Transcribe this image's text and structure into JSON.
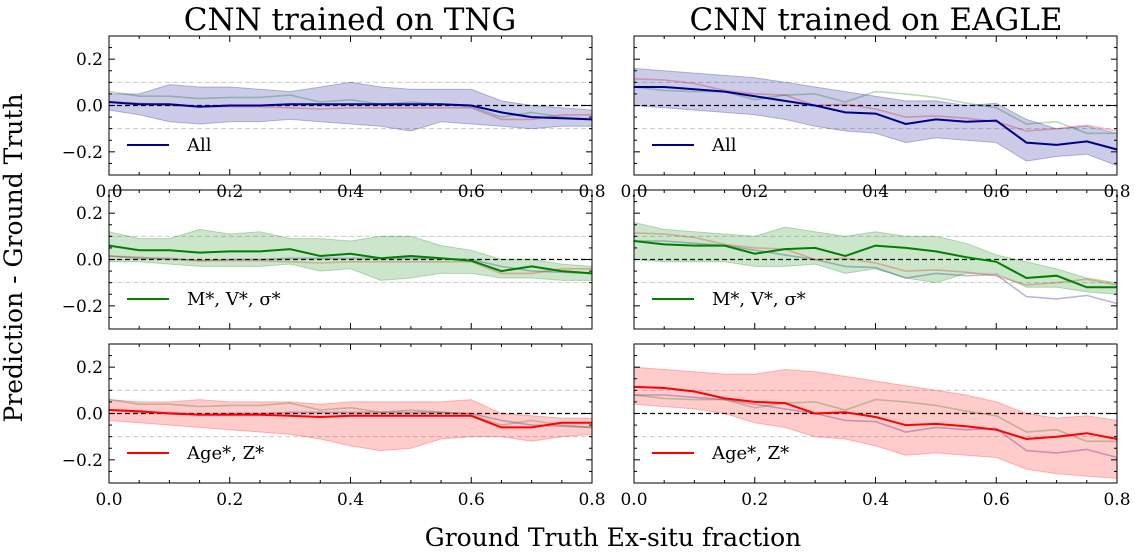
{
  "figure": {
    "suptitle_y": "Prediction - Ground Truth",
    "suptitle_x": "Ground Truth Ex-situ fraction"
  },
  "colors": {
    "All": "#00008b",
    "Dyn": "#008000",
    "Pop": "#ff0000",
    "zero": "#000000",
    "ref": "#cccccc"
  },
  "chart_data": [
    {
      "type": "line",
      "title": "CNN trained on TNG",
      "subplot": "TNG-All",
      "xlabel": "Ground Truth Ex-situ fraction",
      "ylabel": "Prediction - Ground Truth",
      "xlim": [
        0,
        0.8
      ],
      "ylim": [
        -0.3,
        0.3
      ],
      "x_ticks": [
        0.0,
        0.2,
        0.4,
        0.6,
        0.8
      ],
      "y_ticks": [
        -0.2,
        0.0,
        0.2
      ],
      "x_tick_labels": [
        "0.0",
        "0.2",
        "0.4",
        "0.6",
        "0.8"
      ],
      "y_tick_labels": [
        "−0.2",
        "0.0",
        "0.2"
      ],
      "reference_lines": [
        0,
        0.1,
        -0.1
      ],
      "x": [
        0.0,
        0.05,
        0.1,
        0.15,
        0.2,
        0.25,
        0.3,
        0.35,
        0.4,
        0.45,
        0.5,
        0.55,
        0.6,
        0.65,
        0.7,
        0.75,
        0.8
      ],
      "highlight": "All",
      "legend": "All",
      "series": [
        {
          "name": "All",
          "values": [
            0.015,
            0.005,
            0.005,
            -0.005,
            0.0,
            0.0,
            0.005,
            0.005,
            0.005,
            0.005,
            0.005,
            0.005,
            0.0,
            -0.03,
            -0.05,
            -0.055,
            -0.06
          ],
          "upper": [
            0.05,
            0.05,
            0.09,
            0.08,
            0.08,
            0.07,
            0.06,
            0.08,
            0.1,
            0.08,
            0.07,
            0.07,
            0.07,
            0.02,
            0.0,
            -0.01,
            -0.02
          ],
          "lower": [
            -0.02,
            -0.04,
            -0.07,
            -0.08,
            -0.07,
            -0.07,
            -0.06,
            -0.07,
            -0.08,
            -0.09,
            -0.11,
            -0.07,
            -0.08,
            -0.09,
            -0.1,
            -0.09,
            -0.09
          ]
        },
        {
          "name": "Dyn",
          "values": [
            0.06,
            0.04,
            0.04,
            0.03,
            0.035,
            0.035,
            0.045,
            0.015,
            0.025,
            0.005,
            0.015,
            0.005,
            -0.005,
            -0.05,
            -0.03,
            -0.05,
            -0.06
          ]
        },
        {
          "name": "Pop",
          "values": [
            0.015,
            0.01,
            0.0,
            -0.005,
            -0.005,
            -0.005,
            -0.01,
            -0.015,
            -0.01,
            -0.01,
            -0.01,
            -0.01,
            -0.01,
            -0.06,
            -0.06,
            -0.04,
            -0.04
          ]
        }
      ]
    },
    {
      "type": "line",
      "title": "CNN trained on EAGLE",
      "subplot": "EAGLE-All",
      "xlim": [
        0,
        0.8
      ],
      "ylim": [
        -0.3,
        0.3
      ],
      "x_ticks": [
        0.0,
        0.2,
        0.4,
        0.6,
        0.8
      ],
      "y_ticks": [
        -0.2,
        0.0,
        0.2
      ],
      "x_tick_labels": [
        "0.0",
        "0.2",
        "0.4",
        "0.6",
        "0.8"
      ],
      "reference_lines": [
        0,
        0.1,
        -0.1
      ],
      "x": [
        0.0,
        0.05,
        0.1,
        0.15,
        0.2,
        0.25,
        0.3,
        0.35,
        0.4,
        0.45,
        0.5,
        0.55,
        0.6,
        0.65,
        0.7,
        0.75,
        0.8
      ],
      "highlight": "All",
      "legend": "All",
      "series": [
        {
          "name": "All",
          "values": [
            0.08,
            0.08,
            0.07,
            0.06,
            0.04,
            0.02,
            0.0,
            -0.03,
            -0.035,
            -0.08,
            -0.06,
            -0.07,
            -0.065,
            -0.16,
            -0.17,
            -0.155,
            -0.19
          ],
          "upper": [
            0.16,
            0.15,
            0.14,
            0.13,
            0.12,
            0.1,
            0.08,
            0.06,
            0.04,
            0.02,
            0.02,
            0.0,
            0.01,
            -0.06,
            -0.1,
            -0.09,
            -0.12
          ],
          "lower": [
            0.0,
            -0.01,
            -0.02,
            -0.03,
            -0.04,
            -0.06,
            -0.09,
            -0.11,
            -0.12,
            -0.16,
            -0.14,
            -0.15,
            -0.16,
            -0.24,
            -0.22,
            -0.21,
            -0.26
          ]
        },
        {
          "name": "Dyn",
          "values": [
            0.08,
            0.065,
            0.06,
            0.06,
            0.025,
            0.045,
            0.05,
            0.015,
            0.06,
            0.05,
            0.035,
            0.01,
            -0.01,
            -0.08,
            -0.07,
            -0.12,
            -0.12
          ]
        },
        {
          "name": "Pop",
          "values": [
            0.115,
            0.11,
            0.095,
            0.065,
            0.05,
            0.045,
            0.0,
            0.005,
            -0.015,
            -0.05,
            -0.045,
            -0.055,
            -0.07,
            -0.11,
            -0.1,
            -0.085,
            -0.11
          ]
        }
      ]
    },
    {
      "type": "line",
      "subplot": "TNG-Dyn",
      "xlim": [
        0,
        0.8
      ],
      "ylim": [
        -0.3,
        0.3
      ],
      "x_ticks": [
        0.0,
        0.2,
        0.4,
        0.6,
        0.8
      ],
      "y_ticks": [
        -0.2,
        0.0,
        0.2
      ],
      "y_tick_labels": [
        "−0.2",
        "0.0",
        "0.2"
      ],
      "reference_lines": [
        0,
        0.1,
        -0.1
      ],
      "x": [
        0.0,
        0.05,
        0.1,
        0.15,
        0.2,
        0.25,
        0.3,
        0.35,
        0.4,
        0.45,
        0.5,
        0.55,
        0.6,
        0.65,
        0.7,
        0.75,
        0.8
      ],
      "highlight": "Dyn",
      "legend": "M*, V*, σ*",
      "series": [
        {
          "name": "All",
          "values": [
            0.015,
            0.005,
            0.005,
            -0.005,
            0.0,
            0.0,
            0.005,
            0.005,
            0.005,
            0.005,
            0.005,
            0.005,
            0.0,
            -0.03,
            -0.05,
            -0.055,
            -0.06
          ]
        },
        {
          "name": "Dyn",
          "values": [
            0.06,
            0.04,
            0.04,
            0.03,
            0.035,
            0.035,
            0.045,
            0.015,
            0.025,
            0.005,
            0.015,
            0.005,
            -0.005,
            -0.05,
            -0.03,
            -0.05,
            -0.06
          ],
          "upper": [
            0.12,
            0.09,
            0.09,
            0.13,
            0.11,
            0.12,
            0.09,
            0.09,
            0.08,
            0.1,
            0.1,
            0.06,
            0.04,
            0.0,
            0.0,
            -0.02,
            -0.03
          ],
          "lower": [
            -0.01,
            -0.01,
            -0.02,
            -0.03,
            -0.03,
            -0.03,
            -0.02,
            -0.05,
            -0.04,
            -0.09,
            -0.08,
            -0.06,
            -0.06,
            -0.08,
            -0.08,
            -0.09,
            -0.09
          ]
        },
        {
          "name": "Pop",
          "values": [
            0.015,
            0.01,
            0.0,
            -0.005,
            -0.005,
            -0.005,
            -0.01,
            -0.015,
            -0.01,
            -0.01,
            -0.01,
            -0.01,
            -0.01,
            -0.06,
            -0.06,
            -0.04,
            -0.04
          ]
        }
      ]
    },
    {
      "type": "line",
      "subplot": "EAGLE-Dyn",
      "xlim": [
        0,
        0.8
      ],
      "ylim": [
        -0.3,
        0.3
      ],
      "x_ticks": [
        0.0,
        0.2,
        0.4,
        0.6,
        0.8
      ],
      "y_ticks": [
        -0.2,
        0.0,
        0.2
      ],
      "reference_lines": [
        0,
        0.1,
        -0.1
      ],
      "x": [
        0.0,
        0.05,
        0.1,
        0.15,
        0.2,
        0.25,
        0.3,
        0.35,
        0.4,
        0.45,
        0.5,
        0.55,
        0.6,
        0.65,
        0.7,
        0.75,
        0.8
      ],
      "highlight": "Dyn",
      "legend": "M*, V*, σ*",
      "series": [
        {
          "name": "All",
          "values": [
            0.08,
            0.08,
            0.07,
            0.06,
            0.04,
            0.02,
            0.0,
            -0.03,
            -0.035,
            -0.08,
            -0.06,
            -0.07,
            -0.065,
            -0.16,
            -0.17,
            -0.155,
            -0.19
          ]
        },
        {
          "name": "Dyn",
          "values": [
            0.08,
            0.065,
            0.06,
            0.06,
            0.025,
            0.045,
            0.05,
            0.015,
            0.06,
            0.05,
            0.035,
            0.01,
            -0.01,
            -0.08,
            -0.07,
            -0.12,
            -0.12
          ],
          "upper": [
            0.16,
            0.13,
            0.12,
            0.11,
            0.1,
            0.14,
            0.12,
            0.1,
            0.12,
            0.1,
            0.1,
            0.07,
            0.02,
            -0.01,
            -0.04,
            -0.08,
            -0.1
          ],
          "lower": [
            0.0,
            -0.01,
            -0.01,
            -0.01,
            -0.03,
            -0.03,
            -0.02,
            -0.06,
            -0.04,
            -0.08,
            -0.1,
            -0.06,
            -0.06,
            -0.12,
            -0.12,
            -0.14,
            -0.15
          ]
        },
        {
          "name": "Pop",
          "values": [
            0.115,
            0.11,
            0.095,
            0.065,
            0.05,
            0.045,
            0.0,
            0.005,
            -0.015,
            -0.05,
            -0.045,
            -0.055,
            -0.07,
            -0.11,
            -0.1,
            -0.085,
            -0.11
          ]
        }
      ]
    },
    {
      "type": "line",
      "subplot": "TNG-Pop",
      "xlim": [
        0,
        0.8
      ],
      "ylim": [
        -0.3,
        0.3
      ],
      "x_ticks": [
        0.0,
        0.2,
        0.4,
        0.6,
        0.8
      ],
      "y_ticks": [
        -0.2,
        0.0,
        0.2
      ],
      "x_tick_labels": [
        "0.0",
        "0.2",
        "0.4",
        "0.6",
        "0.8"
      ],
      "y_tick_labels": [
        "−0.2",
        "0.0",
        "0.2"
      ],
      "reference_lines": [
        0,
        0.1,
        -0.1
      ],
      "x": [
        0.0,
        0.05,
        0.1,
        0.15,
        0.2,
        0.25,
        0.3,
        0.35,
        0.4,
        0.45,
        0.5,
        0.55,
        0.6,
        0.65,
        0.7,
        0.75,
        0.8
      ],
      "highlight": "Pop",
      "legend": "Age*, Z*",
      "series": [
        {
          "name": "All",
          "values": [
            0.015,
            0.005,
            0.005,
            -0.005,
            0.0,
            0.0,
            0.005,
            0.005,
            0.005,
            0.005,
            0.005,
            0.005,
            0.0,
            -0.03,
            -0.05,
            -0.055,
            -0.06
          ]
        },
        {
          "name": "Dyn",
          "values": [
            0.06,
            0.04,
            0.04,
            0.03,
            0.035,
            0.035,
            0.045,
            0.015,
            0.025,
            0.005,
            0.015,
            0.005,
            -0.005,
            -0.05,
            -0.03,
            -0.05,
            -0.06
          ]
        },
        {
          "name": "Pop",
          "values": [
            0.015,
            0.01,
            0.0,
            -0.005,
            -0.005,
            -0.005,
            -0.01,
            -0.015,
            -0.01,
            -0.01,
            -0.01,
            -0.01,
            -0.01,
            -0.06,
            -0.06,
            -0.04,
            -0.04
          ],
          "upper": [
            0.06,
            0.05,
            0.05,
            0.06,
            0.05,
            0.05,
            0.05,
            0.04,
            0.05,
            0.05,
            0.05,
            0.05,
            0.06,
            0.0,
            -0.01,
            -0.02,
            -0.02
          ],
          "lower": [
            -0.03,
            -0.04,
            -0.05,
            -0.06,
            -0.07,
            -0.08,
            -0.09,
            -0.11,
            -0.14,
            -0.16,
            -0.15,
            -0.11,
            -0.1,
            -0.1,
            -0.12,
            -0.1,
            -0.09
          ]
        }
      ]
    },
    {
      "type": "line",
      "subplot": "EAGLE-Pop",
      "xlim": [
        0,
        0.8
      ],
      "ylim": [
        -0.3,
        0.3
      ],
      "x_ticks": [
        0.0,
        0.2,
        0.4,
        0.6,
        0.8
      ],
      "y_ticks": [
        -0.2,
        0.0,
        0.2
      ],
      "x_tick_labels": [
        "0.0",
        "0.2",
        "0.4",
        "0.6",
        "0.8"
      ],
      "reference_lines": [
        0,
        0.1,
        -0.1
      ],
      "x": [
        0.0,
        0.05,
        0.1,
        0.15,
        0.2,
        0.25,
        0.3,
        0.35,
        0.4,
        0.45,
        0.5,
        0.55,
        0.6,
        0.65,
        0.7,
        0.75,
        0.8
      ],
      "highlight": "Pop",
      "legend": "Age*, Z*",
      "series": [
        {
          "name": "All",
          "values": [
            0.08,
            0.08,
            0.07,
            0.06,
            0.04,
            0.02,
            0.0,
            -0.03,
            -0.035,
            -0.08,
            -0.06,
            -0.07,
            -0.065,
            -0.16,
            -0.17,
            -0.155,
            -0.19
          ]
        },
        {
          "name": "Dyn",
          "values": [
            0.08,
            0.065,
            0.06,
            0.06,
            0.025,
            0.045,
            0.05,
            0.015,
            0.06,
            0.05,
            0.035,
            0.01,
            -0.01,
            -0.08,
            -0.07,
            -0.12,
            -0.12
          ]
        },
        {
          "name": "Pop",
          "values": [
            0.115,
            0.11,
            0.095,
            0.065,
            0.05,
            0.045,
            0.0,
            0.005,
            -0.015,
            -0.05,
            -0.045,
            -0.055,
            -0.07,
            -0.11,
            -0.1,
            -0.085,
            -0.11
          ],
          "upper": [
            0.2,
            0.19,
            0.18,
            0.17,
            0.17,
            0.19,
            0.18,
            0.16,
            0.14,
            0.12,
            0.1,
            0.08,
            0.05,
            0.0,
            -0.02,
            -0.01,
            -0.03
          ],
          "lower": [
            0.04,
            0.03,
            0.02,
            0.0,
            -0.04,
            -0.06,
            -0.1,
            -0.11,
            -0.14,
            -0.18,
            -0.17,
            -0.18,
            -0.19,
            -0.24,
            -0.26,
            -0.27,
            -0.28
          ]
        }
      ]
    }
  ]
}
